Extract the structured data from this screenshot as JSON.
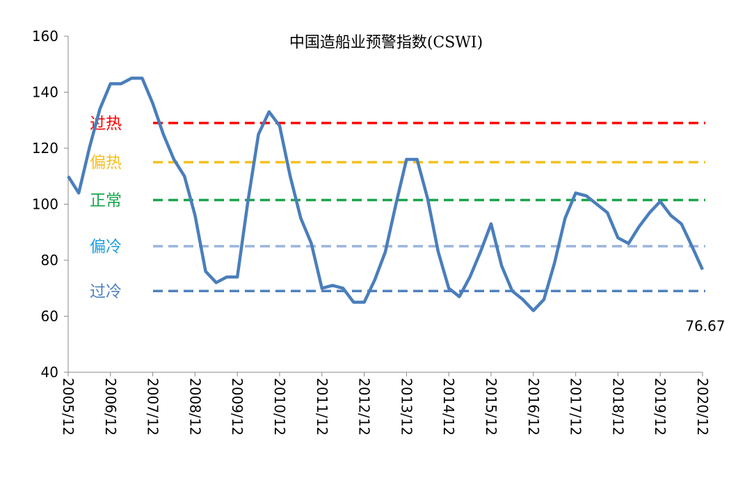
{
  "chart_data": {
    "type": "line",
    "title": "中国造船业预警指数(CSWI)",
    "categories": [
      "2005/12",
      null,
      null,
      null,
      "2006/12",
      null,
      null,
      null,
      "2007/12",
      null,
      null,
      null,
      "2008/12",
      null,
      null,
      null,
      "2009/12",
      null,
      null,
      null,
      "2010/12",
      null,
      null,
      null,
      "2011/12",
      null,
      null,
      null,
      "2012/12",
      null,
      null,
      null,
      "2013/12",
      null,
      null,
      null,
      "2014/12",
      null,
      null,
      null,
      "2015/12",
      null,
      null,
      null,
      "2016/12",
      null,
      null,
      null,
      "2017/12",
      null,
      null,
      null,
      "2018/12",
      null,
      null,
      null,
      "2019/12",
      null,
      null,
      null,
      "2020/12"
    ],
    "series": [
      {
        "color": "#4a7ebb",
        "values": [
          110,
          104,
          120,
          134,
          143,
          143,
          145,
          145,
          136,
          125,
          116,
          110,
          96,
          76,
          72,
          74,
          74,
          101,
          125,
          133,
          128,
          110,
          95,
          86,
          70,
          71,
          70,
          65,
          65,
          73,
          83,
          100,
          116,
          116,
          102,
          83,
          70,
          67,
          74,
          83,
          93,
          78,
          69,
          66,
          62,
          66,
          79,
          95,
          104,
          103,
          100,
          97,
          88,
          86,
          92,
          97,
          101,
          96,
          93,
          85,
          76.67
        ]
      }
    ],
    "label_last": true,
    "thresholds": [
      {
        "name": "过热",
        "value": 129,
        "color": "#ff0000",
        "label_color": "#ff0000"
      },
      {
        "name": "偏热",
        "value": 115,
        "color": "#f5c01e",
        "label_color": "#f5c01e"
      },
      {
        "name": "正常",
        "value": 101.5,
        "color": "#19a44a",
        "label_color": "#19a44a"
      },
      {
        "name": "偏冷",
        "value": 85,
        "color": "#9bb5dc",
        "label_color": "#1e9fe0"
      },
      {
        "name": "过冷",
        "value": 69,
        "color": "#4f81bd",
        "label_color": "#4f81bd"
      }
    ],
    "ylim": [
      40,
      160
    ],
    "yticks": [
      40,
      60,
      80,
      100,
      120,
      140,
      160
    ]
  }
}
